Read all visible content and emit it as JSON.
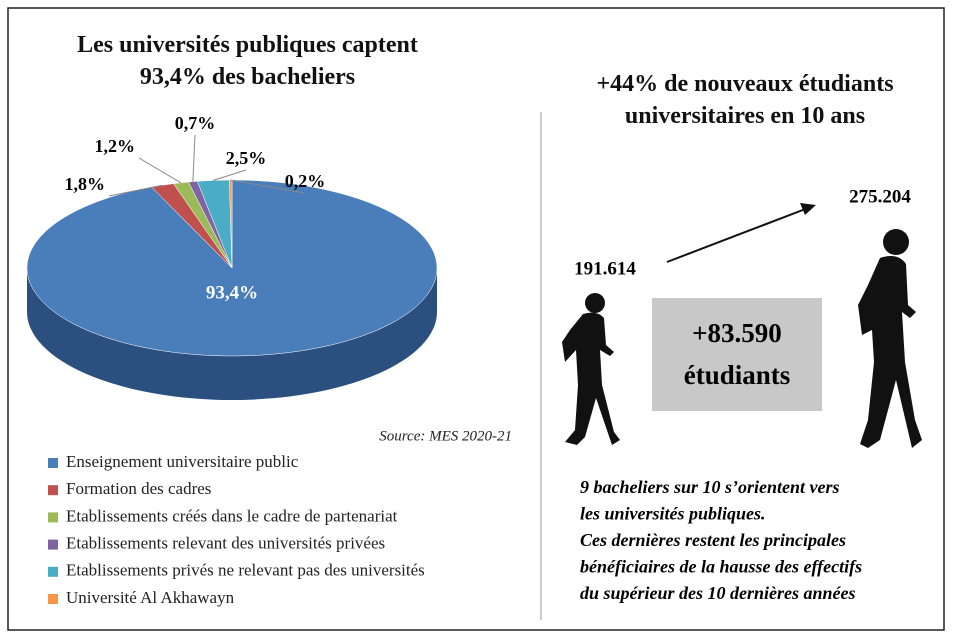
{
  "chart_data": {
    "type": "pie",
    "title": "Les universités publiques captent 93,4% des bacheliers",
    "categories": [
      "Enseignement universitaire public",
      "Formation des cadres",
      "Etablissements créés dans le cadre de partenariat",
      "Etablissements relevant des universités privées",
      "Etablissements privés ne relevant pas des universités",
      "Université Al Akhawayn"
    ],
    "values": [
      93.4,
      1.8,
      1.2,
      0.7,
      2.5,
      0.2
    ],
    "value_labels": [
      "93,4%",
      "1,8%",
      "1,2%",
      "0,7%",
      "2,5%",
      "0,2%"
    ],
    "colors": [
      "#4a7ebb",
      "#c0504d",
      "#9bbb59",
      "#8064a2",
      "#4bacc6",
      "#f79646"
    ],
    "source": "Source: MES 2020-21",
    "legend": "bottom-left"
  },
  "growth": {
    "title": "+44% de nouveaux étudiants universitaires en 10 ans",
    "start_value": "191.614",
    "end_value": "275.204",
    "difference": "+83.590",
    "difference_unit": "étudiants",
    "note_lines": [
      "9 bacheliers sur 10 s’orientent vers",
      "les universités publiques.",
      "Ces dernières restent les principales",
      "bénéficiaires de la hausse des effectifs",
      "du supérieur des 10 dernières années"
    ]
  }
}
